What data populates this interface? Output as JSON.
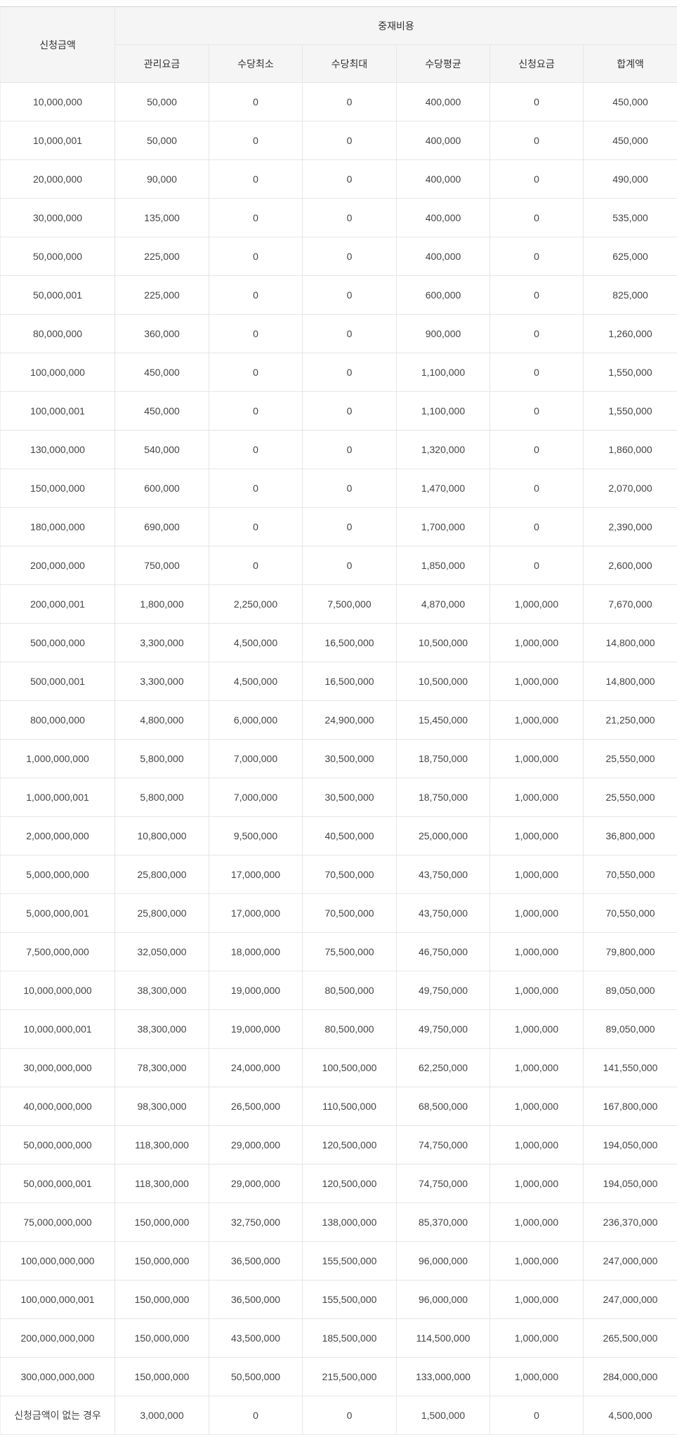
{
  "colors": {
    "header_background": "#f5f5f5",
    "header_text": "#333333",
    "cell_text": "#444444",
    "grid_border": "#e6e6e6",
    "table_top_border": "#d4d4d4"
  },
  "table": {
    "col1_header": "신청금액",
    "group_header": "중재비용",
    "sub_headers": [
      "관리요금",
      "수당최소",
      "수당최대",
      "수당평균",
      "신청요금",
      "합계액"
    ],
    "rows": [
      [
        "10,000,000",
        "50,000",
        "0",
        "0",
        "400,000",
        "0",
        "450,000"
      ],
      [
        "10,000,001",
        "50,000",
        "0",
        "0",
        "400,000",
        "0",
        "450,000"
      ],
      [
        "20,000,000",
        "90,000",
        "0",
        "0",
        "400,000",
        "0",
        "490,000"
      ],
      [
        "30,000,000",
        "135,000",
        "0",
        "0",
        "400,000",
        "0",
        "535,000"
      ],
      [
        "50,000,000",
        "225,000",
        "0",
        "0",
        "400,000",
        "0",
        "625,000"
      ],
      [
        "50,000,001",
        "225,000",
        "0",
        "0",
        "600,000",
        "0",
        "825,000"
      ],
      [
        "80,000,000",
        "360,000",
        "0",
        "0",
        "900,000",
        "0",
        "1,260,000"
      ],
      [
        "100,000,000",
        "450,000",
        "0",
        "0",
        "1,100,000",
        "0",
        "1,550,000"
      ],
      [
        "100,000,001",
        "450,000",
        "0",
        "0",
        "1,100,000",
        "0",
        "1,550,000"
      ],
      [
        "130,000,000",
        "540,000",
        "0",
        "0",
        "1,320,000",
        "0",
        "1,860,000"
      ],
      [
        "150,000,000",
        "600,000",
        "0",
        "0",
        "1,470,000",
        "0",
        "2,070,000"
      ],
      [
        "180,000,000",
        "690,000",
        "0",
        "0",
        "1,700,000",
        "0",
        "2,390,000"
      ],
      [
        "200,000,000",
        "750,000",
        "0",
        "0",
        "1,850,000",
        "0",
        "2,600,000"
      ],
      [
        "200,000,001",
        "1,800,000",
        "2,250,000",
        "7,500,000",
        "4,870,000",
        "1,000,000",
        "7,670,000"
      ],
      [
        "500,000,000",
        "3,300,000",
        "4,500,000",
        "16,500,000",
        "10,500,000",
        "1,000,000",
        "14,800,000"
      ],
      [
        "500,000,001",
        "3,300,000",
        "4,500,000",
        "16,500,000",
        "10,500,000",
        "1,000,000",
        "14,800,000"
      ],
      [
        "800,000,000",
        "4,800,000",
        "6,000,000",
        "24,900,000",
        "15,450,000",
        "1,000,000",
        "21,250,000"
      ],
      [
        "1,000,000,000",
        "5,800,000",
        "7,000,000",
        "30,500,000",
        "18,750,000",
        "1,000,000",
        "25,550,000"
      ],
      [
        "1,000,000,001",
        "5,800,000",
        "7,000,000",
        "30,500,000",
        "18,750,000",
        "1,000,000",
        "25,550,000"
      ],
      [
        "2,000,000,000",
        "10,800,000",
        "9,500,000",
        "40,500,000",
        "25,000,000",
        "1,000,000",
        "36,800,000"
      ],
      [
        "5,000,000,000",
        "25,800,000",
        "17,000,000",
        "70,500,000",
        "43,750,000",
        "1,000,000",
        "70,550,000"
      ],
      [
        "5,000,000,001",
        "25,800,000",
        "17,000,000",
        "70,500,000",
        "43,750,000",
        "1,000,000",
        "70,550,000"
      ],
      [
        "7,500,000,000",
        "32,050,000",
        "18,000,000",
        "75,500,000",
        "46,750,000",
        "1,000,000",
        "79,800,000"
      ],
      [
        "10,000,000,000",
        "38,300,000",
        "19,000,000",
        "80,500,000",
        "49,750,000",
        "1,000,000",
        "89,050,000"
      ],
      [
        "10,000,000,001",
        "38,300,000",
        "19,000,000",
        "80,500,000",
        "49,750,000",
        "1,000,000",
        "89,050,000"
      ],
      [
        "30,000,000,000",
        "78,300,000",
        "24,000,000",
        "100,500,000",
        "62,250,000",
        "1,000,000",
        "141,550,000"
      ],
      [
        "40,000,000,000",
        "98,300,000",
        "26,500,000",
        "110,500,000",
        "68,500,000",
        "1,000,000",
        "167,800,000"
      ],
      [
        "50,000,000,000",
        "118,300,000",
        "29,000,000",
        "120,500,000",
        "74,750,000",
        "1,000,000",
        "194,050,000"
      ],
      [
        "50,000,000,001",
        "118,300,000",
        "29,000,000",
        "120,500,000",
        "74,750,000",
        "1,000,000",
        "194,050,000"
      ],
      [
        "75,000,000,000",
        "150,000,000",
        "32,750,000",
        "138,000,000",
        "85,370,000",
        "1,000,000",
        "236,370,000"
      ],
      [
        "100,000,000,000",
        "150,000,000",
        "36,500,000",
        "155,500,000",
        "96,000,000",
        "1,000,000",
        "247,000,000"
      ],
      [
        "100,000,000,001",
        "150,000,000",
        "36,500,000",
        "155,500,000",
        "96,000,000",
        "1,000,000",
        "247,000,000"
      ],
      [
        "200,000,000,000",
        "150,000,000",
        "43,500,000",
        "185,500,000",
        "114,500,000",
        "1,000,000",
        "265,500,000"
      ],
      [
        "300,000,000,000",
        "150,000,000",
        "50,500,000",
        "215,500,000",
        "133,000,000",
        "1,000,000",
        "284,000,000"
      ],
      [
        "신청금액이 없는 경우",
        "3,000,000",
        "0",
        "0",
        "1,500,000",
        "0",
        "4,500,000"
      ]
    ]
  }
}
